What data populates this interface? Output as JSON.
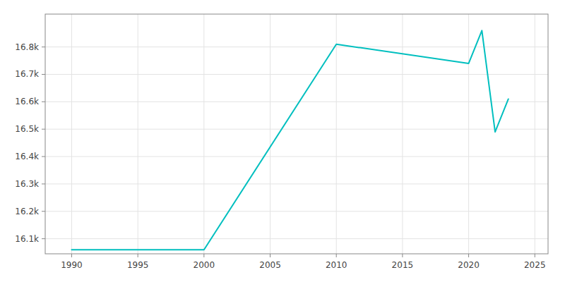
{
  "chart_data": {
    "type": "line",
    "x": [
      1990,
      2000,
      2010,
      2020,
      2021,
      2022,
      2023
    ],
    "values": [
      16060,
      16060,
      16810,
      16740,
      16860,
      16490,
      16610
    ],
    "color": "#00BFBF",
    "xlim": [
      1988,
      2026
    ],
    "ylim": [
      16045,
      16920
    ],
    "xticks": [
      1990,
      1995,
      2000,
      2005,
      2010,
      2015,
      2020,
      2025
    ],
    "yticks": [
      {
        "value": 16100,
        "label": "16.1k"
      },
      {
        "value": 16200,
        "label": "16.2k"
      },
      {
        "value": 16300,
        "label": "16.3k"
      },
      {
        "value": 16400,
        "label": "16.4k"
      },
      {
        "value": 16500,
        "label": "16.5k"
      },
      {
        "value": 16600,
        "label": "16.6k"
      },
      {
        "value": 16700,
        "label": "16.7k"
      },
      {
        "value": 16800,
        "label": "16.8k"
      }
    ],
    "grid": true
  }
}
